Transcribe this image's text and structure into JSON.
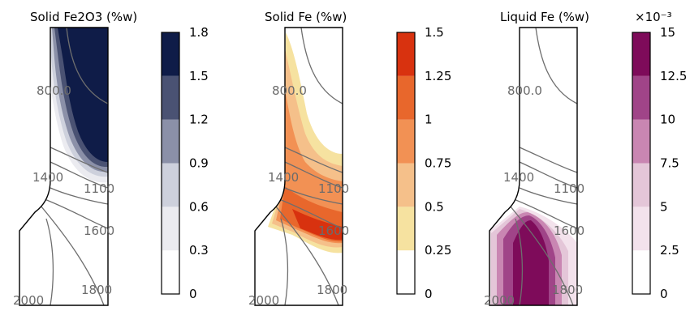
{
  "chart_data": [
    {
      "type": "heatmap",
      "title": "Solid Fe2O3 (%w)",
      "colorbar": {
        "ticks": [
          "0",
          "0.3",
          "0.6",
          "0.9",
          "1.2",
          "1.5",
          "1.8"
        ],
        "levels": [
          0,
          0.3,
          0.6,
          0.9,
          1.2,
          1.5,
          1.8
        ],
        "colors": [
          "#ffffff",
          "#ebebf0",
          "#cdd0dc",
          "#8b90a8",
          "#4a5273",
          "#0f1c48"
        ],
        "exponent": ""
      },
      "contour_labels": [
        "800.0",
        "1400",
        "1100",
        "1600",
        "1800",
        "2000"
      ]
    },
    {
      "type": "heatmap",
      "title": "Solid Fe (%w)",
      "colorbar": {
        "ticks": [
          "0",
          "0.25",
          "0.5",
          "0.75",
          "1",
          "1.25",
          "1.5"
        ],
        "levels": [
          0,
          0.25,
          0.5,
          0.75,
          1,
          1.25,
          1.5
        ],
        "colors": [
          "#ffffff",
          "#f6e2a0",
          "#f5c08a",
          "#f29154",
          "#e8672c",
          "#d8320f"
        ],
        "exponent": ""
      },
      "contour_labels": [
        "800.0",
        "1400",
        "1100",
        "1600",
        "1800",
        "2000"
      ]
    },
    {
      "type": "heatmap",
      "title": "Liquid Fe (%w)",
      "colorbar": {
        "ticks": [
          "0",
          "2.5",
          "5",
          "7.5",
          "10",
          "12.5",
          "15"
        ],
        "levels": [
          0,
          2.5,
          5,
          7.5,
          10,
          12.5,
          15
        ],
        "colors": [
          "#ffffff",
          "#f3e2ec",
          "#e4c6d8",
          "#c986b2",
          "#a04488",
          "#7e0b5a"
        ],
        "exponent": "×10⁻³"
      },
      "contour_labels": [
        "800.0",
        "1400",
        "1100",
        "1600",
        "1800",
        "2000"
      ]
    }
  ]
}
